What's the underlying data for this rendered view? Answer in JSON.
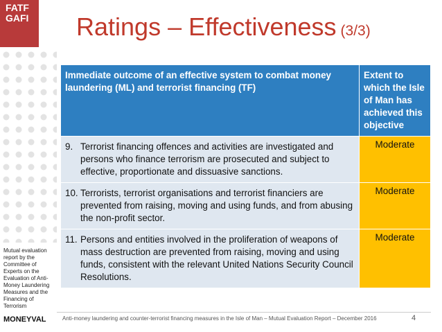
{
  "logo": {
    "line1": "FATF",
    "line2": "GAFI"
  },
  "title": {
    "main": "Ratings – Effectiveness",
    "part": "(3/3)"
  },
  "table": {
    "header": [
      "Immediate outcome of an effective system to combat money laundering (ML) and terrorist financing (TF)",
      "Extent to which the Isle of Man has achieved this objective"
    ],
    "rows": [
      {
        "number": "9.",
        "text": "Terrorist financing offences and activities are investigated and persons who finance terrorism are prosecuted and subject to effective, proportionate and dissuasive sanctions.",
        "rating": "Moderate"
      },
      {
        "number": "10.",
        "text": "Terrorists, terrorist organisations and terrorist financiers are prevented from raising, moving and using funds, and from abusing the non-profit sector.",
        "rating": "Moderate"
      },
      {
        "number": "11.",
        "text": "Persons and entities involved in the proliferation of weapons of mass destruction are prevented from raising, moving and using funds, consistent with the relevant United Nations Security Council Resolutions.",
        "rating": "Moderate"
      }
    ]
  },
  "sidebar": {
    "description": "Mutual evaluation report by the Committee of Experts on the Evaluation of Anti-Money Laundering Measures and the Financing of Terrorism",
    "brand": "MONEYVAL"
  },
  "footer": {
    "text": "Anti-money laundering and counter-terrorist financing measures in the Isle of Man – Mutual Evaluation Report – December 2016",
    "page": "4"
  }
}
